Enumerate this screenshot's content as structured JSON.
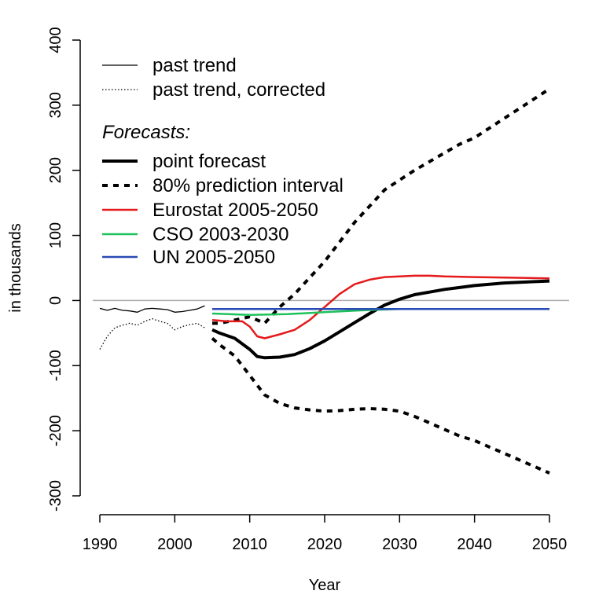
{
  "chart_data": {
    "type": "line",
    "title": "",
    "xlabel": "Year",
    "ylabel": "in thousands",
    "xlim": [
      1990,
      2050
    ],
    "ylim": [
      -300,
      400
    ],
    "x_ticks": [
      1990,
      2000,
      2010,
      2020,
      2030,
      2040,
      2050
    ],
    "y_ticks": [
      -300,
      -200,
      -100,
      0,
      100,
      200,
      300,
      400
    ],
    "reference_line": 0,
    "legend_title": "Forecasts:",
    "series": [
      {
        "name": "past trend",
        "style": "solid-thin",
        "color": "#000000",
        "x": [
          1990,
          1991,
          1992,
          1993,
          1994,
          1995,
          1996,
          1997,
          1998,
          1999,
          2000,
          2001,
          2002,
          2003,
          2004
        ],
        "y": [
          -12,
          -15,
          -12,
          -15,
          -16,
          -18,
          -13,
          -12,
          -13,
          -14,
          -18,
          -17,
          -15,
          -13,
          -8
        ]
      },
      {
        "name": "past trend, corrected",
        "style": "dotted-thin",
        "color": "#000000",
        "x": [
          1990,
          1991,
          1992,
          1993,
          1994,
          1995,
          1996,
          1997,
          1998,
          1999,
          2000,
          2001,
          2002,
          2003,
          2004
        ],
        "y": [
          -75,
          -55,
          -42,
          -38,
          -35,
          -38,
          -32,
          -28,
          -32,
          -35,
          -45,
          -40,
          -37,
          -35,
          -42
        ]
      },
      {
        "name": "point forecast",
        "style": "solid-thick",
        "color": "#000000",
        "x": [
          2005,
          2006,
          2008,
          2010,
          2011,
          2012,
          2014,
          2016,
          2018,
          2020,
          2022,
          2024,
          2026,
          2028,
          2030,
          2032,
          2034,
          2036,
          2038,
          2040,
          2042,
          2044,
          2046,
          2048,
          2050
        ],
        "y": [
          -45,
          -50,
          -58,
          -75,
          -86,
          -88,
          -87,
          -83,
          -74,
          -62,
          -48,
          -34,
          -20,
          -7,
          2,
          9,
          13,
          17,
          20,
          23,
          25,
          27,
          28,
          29,
          30
        ]
      },
      {
        "name": "80% prediction interval",
        "style": "dashed-thick",
        "color": "#000000",
        "band": "upper",
        "x": [
          2005,
          2006,
          2008,
          2010,
          2012,
          2014,
          2016,
          2018,
          2020,
          2022,
          2024,
          2026,
          2028,
          2030,
          2032,
          2035,
          2038,
          2040,
          2042,
          2044,
          2046,
          2048,
          2050
        ],
        "y": [
          -35,
          -35,
          -30,
          -25,
          -35,
          -10,
          10,
          35,
          60,
          90,
          120,
          145,
          170,
          185,
          200,
          220,
          240,
          250,
          265,
          280,
          295,
          310,
          325
        ]
      },
      {
        "name": "80% prediction interval",
        "style": "dashed-thick",
        "color": "#000000",
        "band": "lower",
        "x": [
          2005,
          2006,
          2008,
          2010,
          2012,
          2014,
          2016,
          2018,
          2020,
          2022,
          2024,
          2026,
          2028,
          2030,
          2032,
          2034,
          2036,
          2038,
          2040,
          2042,
          2044,
          2046,
          2048,
          2050
        ],
        "y": [
          -58,
          -68,
          -85,
          -115,
          -145,
          -158,
          -165,
          -168,
          -170,
          -169,
          -167,
          -166,
          -167,
          -170,
          -178,
          -188,
          -198,
          -208,
          -215,
          -225,
          -235,
          -245,
          -255,
          -265
        ]
      },
      {
        "name": "Eurostat 2005-2050",
        "style": "solid",
        "color": "#e41a1c",
        "x": [
          2005,
          2007,
          2009,
          2010,
          2011,
          2012,
          2014,
          2016,
          2018,
          2020,
          2022,
          2024,
          2026,
          2028,
          2030,
          2032,
          2034,
          2036,
          2040,
          2045,
          2050
        ],
        "y": [
          -30,
          -32,
          -32,
          -40,
          -55,
          -58,
          -52,
          -45,
          -30,
          -10,
          10,
          25,
          32,
          36,
          37,
          38,
          38,
          37,
          36,
          35,
          34
        ]
      },
      {
        "name": "CSO 2003-2030",
        "style": "solid",
        "color": "#1ec25a",
        "x": [
          2005,
          2010,
          2015,
          2020,
          2025,
          2030
        ],
        "y": [
          -20,
          -22,
          -21,
          -18,
          -15,
          -13
        ]
      },
      {
        "name": "UN 2005-2050",
        "style": "solid",
        "color": "#2a4bb5",
        "x": [
          2005,
          2050
        ],
        "y": [
          -13,
          -13
        ]
      }
    ]
  }
}
